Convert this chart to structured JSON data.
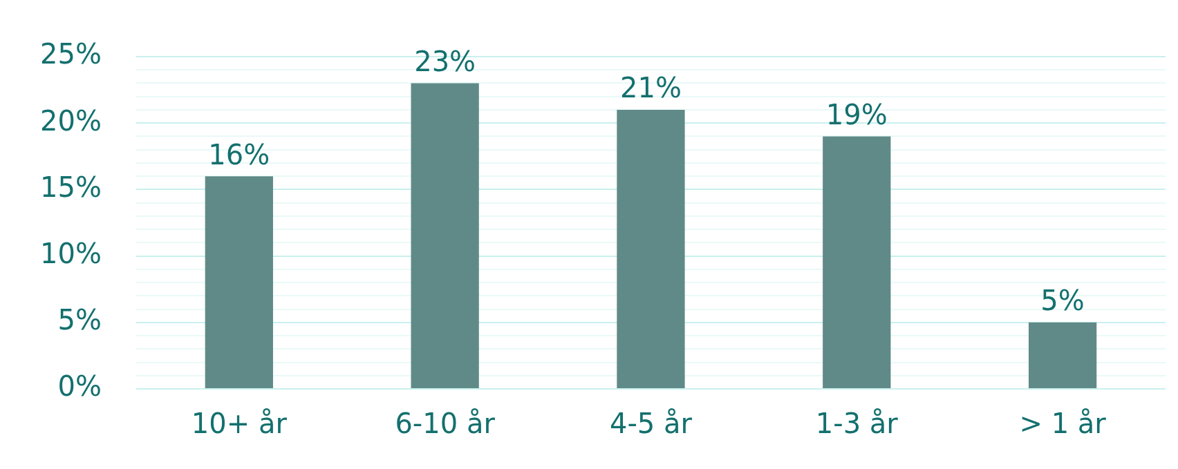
{
  "chart_data": {
    "type": "bar",
    "categories": [
      "10+ år",
      "6-10 år",
      "4-5 år",
      "1-3 år",
      "> 1 år"
    ],
    "values": [
      16,
      23,
      21,
      19,
      5
    ],
    "value_labels": [
      "16%",
      "23%",
      "21%",
      "19%",
      "5%"
    ],
    "color": "#5f8a87",
    "ylim": [
      0,
      25
    ],
    "yticks": [
      {
        "value": 0,
        "label": "0%"
      },
      {
        "value": 1,
        "label": null
      },
      {
        "value": 2,
        "label": null
      },
      {
        "value": 3,
        "label": null
      },
      {
        "value": 4,
        "label": null
      },
      {
        "value": 5,
        "label": "5%"
      },
      {
        "value": 6,
        "label": null
      },
      {
        "value": 7,
        "label": null
      },
      {
        "value": 8,
        "label": null
      },
      {
        "value": 9,
        "label": null
      },
      {
        "value": 10,
        "label": "10%"
      },
      {
        "value": 11,
        "label": null
      },
      {
        "value": 12,
        "label": null
      },
      {
        "value": 13,
        "label": null
      },
      {
        "value": 14,
        "label": null
      },
      {
        "value": 15,
        "label": "15%"
      },
      {
        "value": 16,
        "label": null
      },
      {
        "value": 17,
        "label": null
      },
      {
        "value": 18,
        "label": null
      },
      {
        "value": 19,
        "label": null
      },
      {
        "value": 20,
        "label": "20%"
      },
      {
        "value": 21,
        "label": null
      },
      {
        "value": 22,
        "label": null
      },
      {
        "value": 23,
        "label": null
      },
      {
        "value": 24,
        "label": null
      },
      {
        "value": 25,
        "label": "25%"
      }
    ],
    "grid": "y"
  }
}
